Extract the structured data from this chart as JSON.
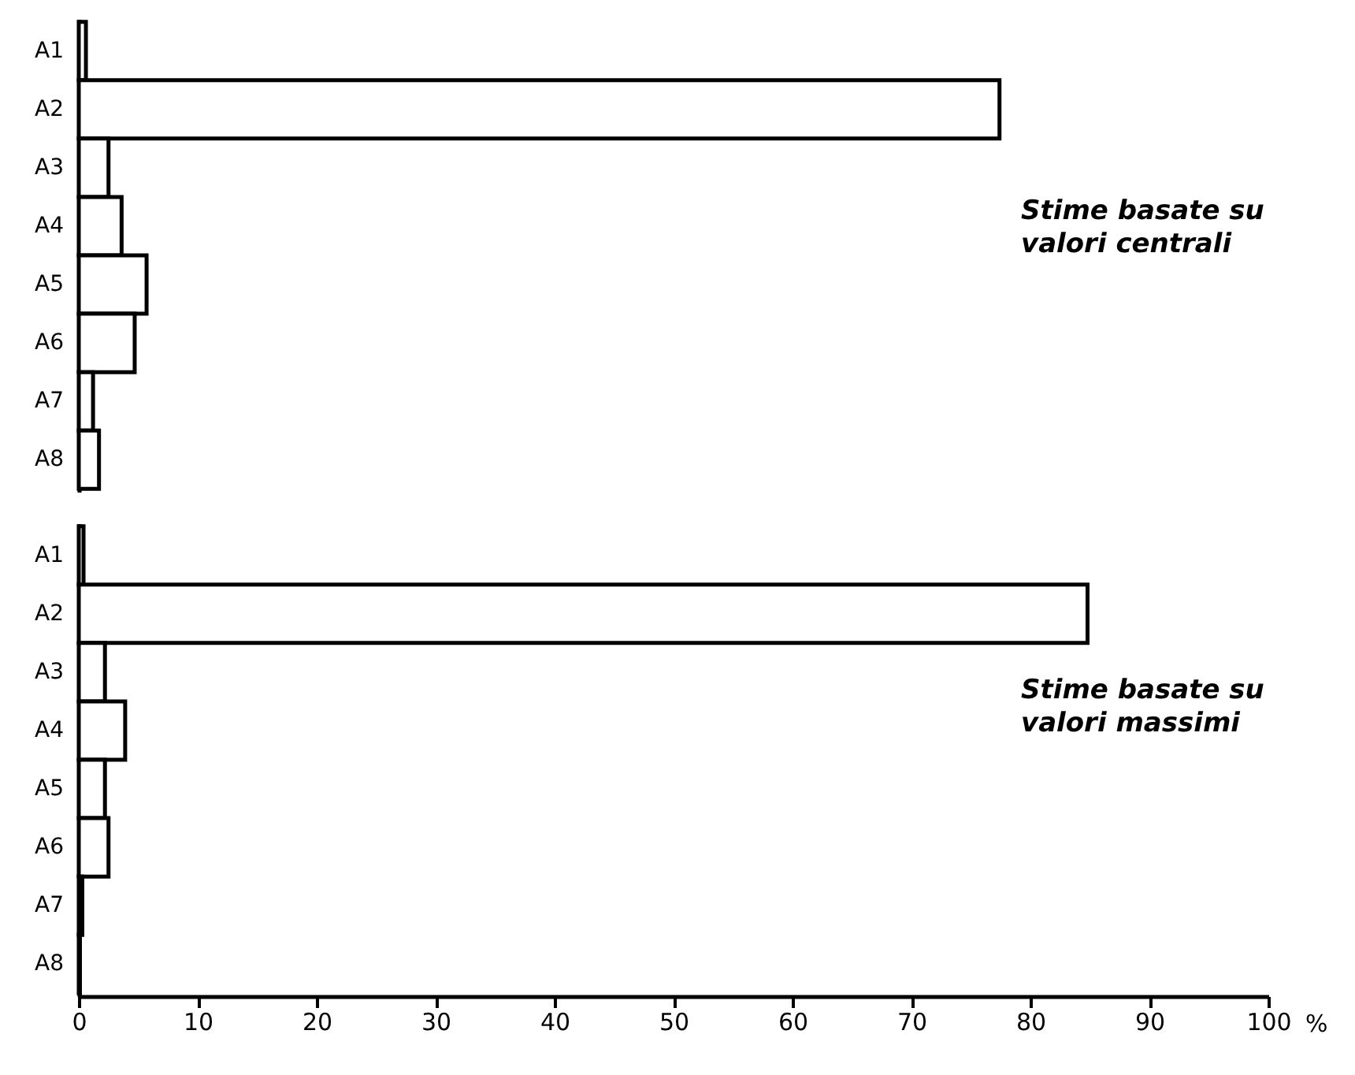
{
  "chart_data": [
    {
      "type": "bar",
      "orientation": "horizontal",
      "categories": [
        "A1",
        "A2",
        "A3",
        "A4",
        "A5",
        "A6",
        "A7",
        "A8"
      ],
      "series": [
        {
          "color": "#ffffff",
          "values": [
            0.6,
            77.4,
            2.5,
            3.6,
            5.7,
            4.7,
            1.2,
            1.7
          ]
        }
      ],
      "xlim": [
        0,
        100
      ],
      "tick_labels": "y",
      "grid": false,
      "annotations": [
        "Stime basate su\nvalori centrali"
      ]
    },
    {
      "type": "bar",
      "orientation": "horizontal",
      "categories": [
        "A1",
        "A2",
        "A3",
        "A4",
        "A5",
        "A6",
        "A7",
        "A8"
      ],
      "series": [
        {
          "color": "#ffffff",
          "values": [
            0.4,
            84.8,
            2.2,
            3.9,
            2.2,
            2.5,
            0.3,
            0.1
          ]
        }
      ],
      "xlim": [
        0,
        100
      ],
      "xticks": [
        0,
        10,
        20,
        30,
        40,
        50,
        60,
        70,
        80,
        90,
        100
      ],
      "xlabel": "%",
      "grid": false,
      "annotations": [
        "Stime basate su\nvalori massimi"
      ]
    }
  ]
}
